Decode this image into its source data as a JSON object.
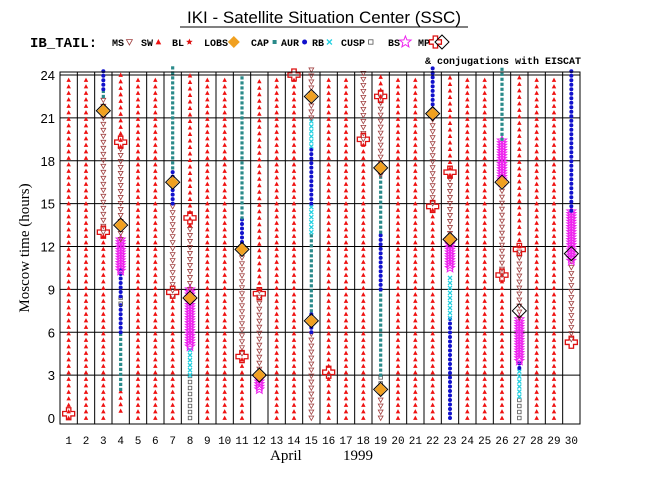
{
  "chart_data": {
    "type": "scatter",
    "title": "IKI - Satellite Situation Center (SSC)",
    "satellite_label": "IB_TAIL:",
    "subtitle": "& conjugations with EISCAT",
    "xlabel_month": "April",
    "xlabel_year": "1999",
    "ylabel": "Moscow time (hours)",
    "x_categories": [
      "1",
      "2",
      "3",
      "4",
      "5",
      "6",
      "7",
      "8",
      "9",
      "10",
      "11",
      "12",
      "13",
      "14",
      "15",
      "16",
      "17",
      "18",
      "19",
      "20",
      "21",
      "22",
      "23",
      "24",
      "25",
      "26",
      "27",
      "28",
      "29",
      "30"
    ],
    "ylim": [
      0,
      24
    ],
    "yticks": [
      "0",
      "3",
      "6",
      "9",
      "12",
      "15",
      "18",
      "21",
      "24"
    ],
    "legend": [
      {
        "key": "MS",
        "label": "MS",
        "marker": "tri-down",
        "color": "#a04040"
      },
      {
        "key": "SW",
        "label": "SW",
        "marker": "tri-up",
        "color": "#ee1111"
      },
      {
        "key": "BL",
        "label": "BL",
        "marker": "star",
        "color": "#dd1111"
      },
      {
        "key": "LOBS",
        "label": "LOBS",
        "marker": "diamond",
        "color": "#f0a020"
      },
      {
        "key": "CAP",
        "label": "CAP",
        "marker": "square",
        "color": "#2a8a8a"
      },
      {
        "key": "AUR",
        "label": "AUR",
        "marker": "dot",
        "color": "#1111cc"
      },
      {
        "key": "RB",
        "label": "RB",
        "marker": "x",
        "color": "#22d0e0"
      },
      {
        "key": "CUSP",
        "label": "CUSP",
        "marker": "osquare",
        "color": "#555555"
      },
      {
        "key": "BS",
        "label": "BS",
        "marker": "ostar",
        "color": "#ee22ee"
      },
      {
        "key": "MP",
        "label": "MP",
        "marker": "cross",
        "color": "#dd1111"
      },
      {
        "key": "EISCAT",
        "label": "",
        "marker": "odiamond",
        "color": "#000000"
      }
    ],
    "daily_regions": [
      {
        "day": 1,
        "segments": [
          [
            "SW",
            0,
            24
          ]
        ]
      },
      {
        "day": 2,
        "segments": [
          [
            "SW",
            0,
            24
          ]
        ]
      },
      {
        "day": 3,
        "segments": [
          [
            "SW",
            0,
            13
          ],
          [
            "MS",
            13,
            22.5
          ],
          [
            "CAP",
            22.5,
            23
          ],
          [
            "AUR",
            23,
            24.5
          ]
        ]
      },
      {
        "day": 4,
        "segments": [
          [
            "SW",
            0.5,
            2
          ],
          [
            "CAP",
            2,
            6
          ],
          [
            "AUR",
            6,
            8
          ],
          [
            "CUSP",
            8,
            8.5
          ],
          [
            "AUR",
            8.5,
            10.5
          ],
          [
            "BS",
            10.3,
            12.5
          ],
          [
            "MS",
            12.5,
            19
          ],
          [
            "SW",
            19,
            24
          ]
        ]
      },
      {
        "day": 5,
        "segments": [
          [
            "SW",
            0,
            24
          ]
        ]
      },
      {
        "day": 6,
        "segments": [
          [
            "SW",
            0,
            24
          ]
        ]
      },
      {
        "day": 7,
        "segments": [
          [
            "SW",
            0,
            8.5
          ],
          [
            "MS",
            8.5,
            15
          ],
          [
            "AUR",
            15,
            17.5
          ],
          [
            "CAP",
            17.5,
            24.5
          ]
        ]
      },
      {
        "day": 8,
        "segments": [
          [
            "CUSP",
            0,
            3
          ],
          [
            "RB",
            3,
            5
          ],
          [
            "BS",
            5,
            9
          ],
          [
            "MS",
            9,
            13.5
          ],
          [
            "SW",
            13.5,
            24
          ]
        ]
      },
      {
        "day": 9,
        "segments": [
          [
            "SW",
            0,
            24
          ]
        ]
      },
      {
        "day": 10,
        "segments": [
          [
            "SW",
            0,
            24
          ]
        ]
      },
      {
        "day": 11,
        "segments": [
          [
            "SW",
            0,
            4.5
          ],
          [
            "MS",
            4.5,
            12
          ],
          [
            "AUR",
            12,
            14
          ],
          [
            "CAP",
            14,
            24
          ]
        ]
      },
      {
        "day": 12,
        "segments": [
          [
            "BS",
            2,
            3
          ],
          [
            "MS",
            3,
            9
          ],
          [
            "SW",
            9,
            24
          ]
        ]
      },
      {
        "day": 13,
        "segments": [
          [
            "SW",
            0,
            24
          ]
        ]
      },
      {
        "day": 14,
        "segments": [
          [
            "SW",
            0,
            24
          ]
        ]
      },
      {
        "day": 15,
        "segments": [
          [
            "MS",
            0,
            6
          ],
          [
            "AUR",
            6,
            7.5
          ],
          [
            "CAP",
            7.5,
            13
          ],
          [
            "RB",
            13,
            15
          ],
          [
            "AUR",
            15,
            19
          ],
          [
            "RB",
            19,
            21
          ],
          [
            "MS",
            21,
            24.5
          ]
        ]
      },
      {
        "day": 16,
        "segments": [
          [
            "SW",
            0,
            24
          ]
        ]
      },
      {
        "day": 17,
        "segments": [
          [
            "SW",
            0,
            24
          ]
        ]
      },
      {
        "day": 18,
        "segments": [
          [
            "SW",
            0,
            19.5
          ],
          [
            "MS",
            19.5,
            24.5
          ]
        ]
      },
      {
        "day": 19,
        "segments": [
          [
            "MS",
            0,
            2
          ],
          [
            "CUSP",
            2,
            3
          ],
          [
            "CAP",
            3,
            9
          ],
          [
            "AUR",
            9,
            13
          ],
          [
            "CAP",
            13,
            17
          ],
          [
            "MS",
            17,
            22.5
          ],
          [
            "SW",
            22.5,
            24
          ]
        ]
      },
      {
        "day": 20,
        "segments": [
          [
            "SW",
            0,
            24
          ]
        ]
      },
      {
        "day": 21,
        "segments": [
          [
            "SW",
            0,
            24
          ]
        ]
      },
      {
        "day": 22,
        "segments": [
          [
            "SW",
            0,
            15
          ],
          [
            "MS",
            15,
            21
          ],
          [
            "AUR",
            21,
            24.5
          ]
        ]
      },
      {
        "day": 23,
        "segments": [
          [
            "AUR",
            0,
            7
          ],
          [
            "RB",
            7,
            10
          ],
          [
            "BS",
            10.5,
            12.5
          ],
          [
            "MS",
            12.5,
            17
          ],
          [
            "SW",
            17,
            24
          ]
        ]
      },
      {
        "day": 24,
        "segments": [
          [
            "SW",
            0,
            24
          ]
        ]
      },
      {
        "day": 25,
        "segments": [
          [
            "SW",
            0,
            24
          ]
        ]
      },
      {
        "day": 26,
        "segments": [
          [
            "SW",
            0,
            10
          ],
          [
            "MS",
            10,
            16.5
          ],
          [
            "BS",
            16.5,
            19.5
          ],
          [
            "CAP",
            19.5,
            24.5
          ]
        ]
      },
      {
        "day": 27,
        "segments": [
          [
            "CUSP",
            0,
            1.5
          ],
          [
            "RB",
            1.5,
            3.5
          ],
          [
            "AUR",
            3.5,
            4
          ],
          [
            "BS",
            4,
            7
          ],
          [
            "MS",
            7,
            12
          ],
          [
            "SW",
            12,
            24
          ]
        ]
      },
      {
        "day": 28,
        "segments": [
          [
            "SW",
            0,
            24
          ]
        ]
      },
      {
        "day": 29,
        "segments": [
          [
            "SW",
            0,
            24
          ]
        ]
      },
      {
        "day": 30,
        "segments": [
          [
            "MS",
            5.5,
            11
          ],
          [
            "BS",
            11,
            14.5
          ],
          [
            "AUR",
            14.5,
            24.5
          ]
        ]
      }
    ],
    "point_events": [
      {
        "day": 1,
        "type": "MP",
        "hour": 0.3
      },
      {
        "day": 3,
        "type": "MP",
        "hour": 13
      },
      {
        "day": 3,
        "type": "LOBS",
        "hour": 21.5
      },
      {
        "day": 3,
        "type": "EISCAT",
        "hour": 21.5
      },
      {
        "day": 4,
        "type": "LOBS",
        "hour": 13.5
      },
      {
        "day": 4,
        "type": "EISCAT",
        "hour": 13.5
      },
      {
        "day": 4,
        "type": "MP",
        "hour": 19.3
      },
      {
        "day": 7,
        "type": "MP",
        "hour": 8.8
      },
      {
        "day": 7,
        "type": "LOBS",
        "hour": 16.5
      },
      {
        "day": 7,
        "type": "EISCAT",
        "hour": 16.5
      },
      {
        "day": 8,
        "type": "LOBS",
        "hour": 8.4
      },
      {
        "day": 8,
        "type": "EISCAT",
        "hour": 8.4
      },
      {
        "day": 8,
        "type": "MP",
        "hour": 14
      },
      {
        "day": 11,
        "type": "MP",
        "hour": 4.3
      },
      {
        "day": 11,
        "type": "LOBS",
        "hour": 11.8
      },
      {
        "day": 11,
        "type": "EISCAT",
        "hour": 11.8
      },
      {
        "day": 12,
        "type": "LOBS",
        "hour": 3
      },
      {
        "day": 12,
        "type": "EISCAT",
        "hour": 3
      },
      {
        "day": 12,
        "type": "MP",
        "hour": 8.7
      },
      {
        "day": 14,
        "type": "MP",
        "hour": 24
      },
      {
        "day": 15,
        "type": "LOBS",
        "hour": 6.8
      },
      {
        "day": 15,
        "type": "EISCAT",
        "hour": 6.8
      },
      {
        "day": 15,
        "type": "LOBS",
        "hour": 22.5
      },
      {
        "day": 15,
        "type": "EISCAT",
        "hour": 22.5
      },
      {
        "day": 16,
        "type": "MP",
        "hour": 3.2
      },
      {
        "day": 18,
        "type": "MP",
        "hour": 19.5
      },
      {
        "day": 19,
        "type": "LOBS",
        "hour": 2
      },
      {
        "day": 19,
        "type": "EISCAT",
        "hour": 2
      },
      {
        "day": 19,
        "type": "LOBS",
        "hour": 17.5
      },
      {
        "day": 19,
        "type": "EISCAT",
        "hour": 17.5
      },
      {
        "day": 19,
        "type": "MP",
        "hour": 22.5
      },
      {
        "day": 22,
        "type": "MP",
        "hour": 14.8
      },
      {
        "day": 22,
        "type": "LOBS",
        "hour": 21.3
      },
      {
        "day": 22,
        "type": "EISCAT",
        "hour": 21.3
      },
      {
        "day": 23,
        "type": "LOBS",
        "hour": 12.5
      },
      {
        "day": 23,
        "type": "EISCAT",
        "hour": 12.5
      },
      {
        "day": 23,
        "type": "MP",
        "hour": 17.2
      },
      {
        "day": 26,
        "type": "MP",
        "hour": 10
      },
      {
        "day": 26,
        "type": "LOBS",
        "hour": 16.5
      },
      {
        "day": 26,
        "type": "EISCAT",
        "hour": 16.5
      },
      {
        "day": 27,
        "type": "EISCAT",
        "hour": 7.5
      },
      {
        "day": 27,
        "type": "MP",
        "hour": 11.8
      },
      {
        "day": 30,
        "type": "MP",
        "hour": 5.3
      },
      {
        "day": 30,
        "type": "EISCAT",
        "hour": 11.5
      }
    ]
  }
}
